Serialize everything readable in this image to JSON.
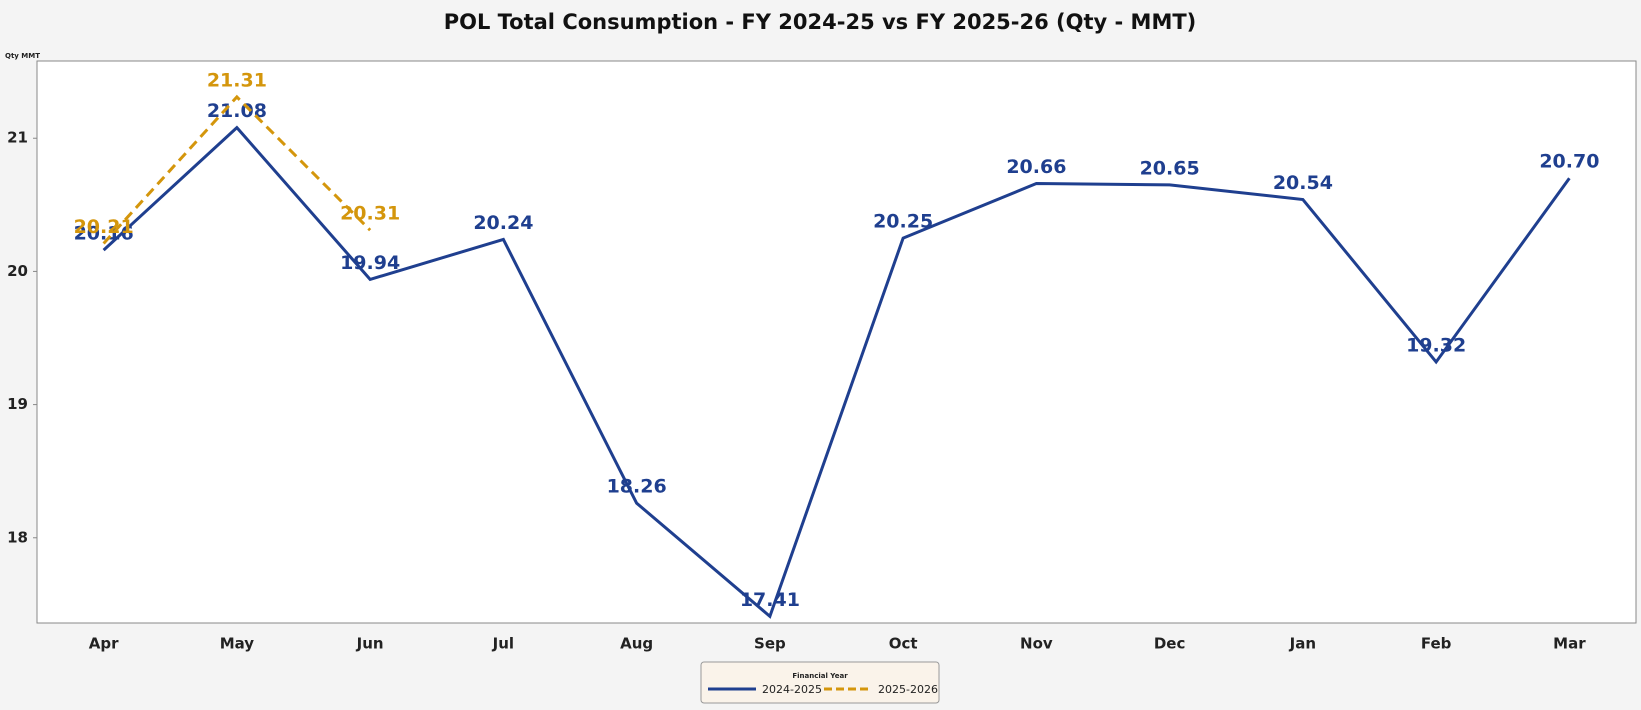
{
  "chart_data": {
    "type": "line",
    "title": "POL Total Consumption - FY 2024-25 vs FY 2025-26 (Qty - MMT)",
    "y_label": "Qty MMT",
    "legend_title": "Financial Year",
    "legend": "bottom",
    "categories": [
      "Apr",
      "May",
      "Jun",
      "Jul",
      "Aug",
      "Sep",
      "Oct",
      "Nov",
      "Dec",
      "Jan",
      "Feb",
      "Mar"
    ],
    "series": [
      {
        "name": "2024-2025",
        "color": "#1f3f8f",
        "line_style": "solid",
        "values": [
          20.16,
          21.08,
          19.94,
          20.24,
          18.26,
          17.41,
          20.25,
          20.66,
          20.65,
          20.54,
          19.32,
          20.7
        ],
        "value_labels": [
          "20.16",
          "21.08",
          "19.94",
          "20.24",
          "18.26",
          "17.41",
          "20.25",
          "20.66",
          "20.65",
          "20.54",
          "19.32",
          "20.70"
        ]
      },
      {
        "name": "2025-2026",
        "color": "#d4960c",
        "line_style": "dashed",
        "values": [
          20.21,
          21.31,
          20.31,
          null,
          null,
          null,
          null,
          null,
          null,
          null,
          null,
          null
        ],
        "value_labels": [
          "20.21",
          "21.31",
          "20.31",
          null,
          null,
          null,
          null,
          null,
          null,
          null,
          null,
          null
        ]
      }
    ],
    "ylim": [
      17.36,
      21.58
    ],
    "yticks": [
      18,
      19,
      20,
      21
    ],
    "grid": false
  }
}
